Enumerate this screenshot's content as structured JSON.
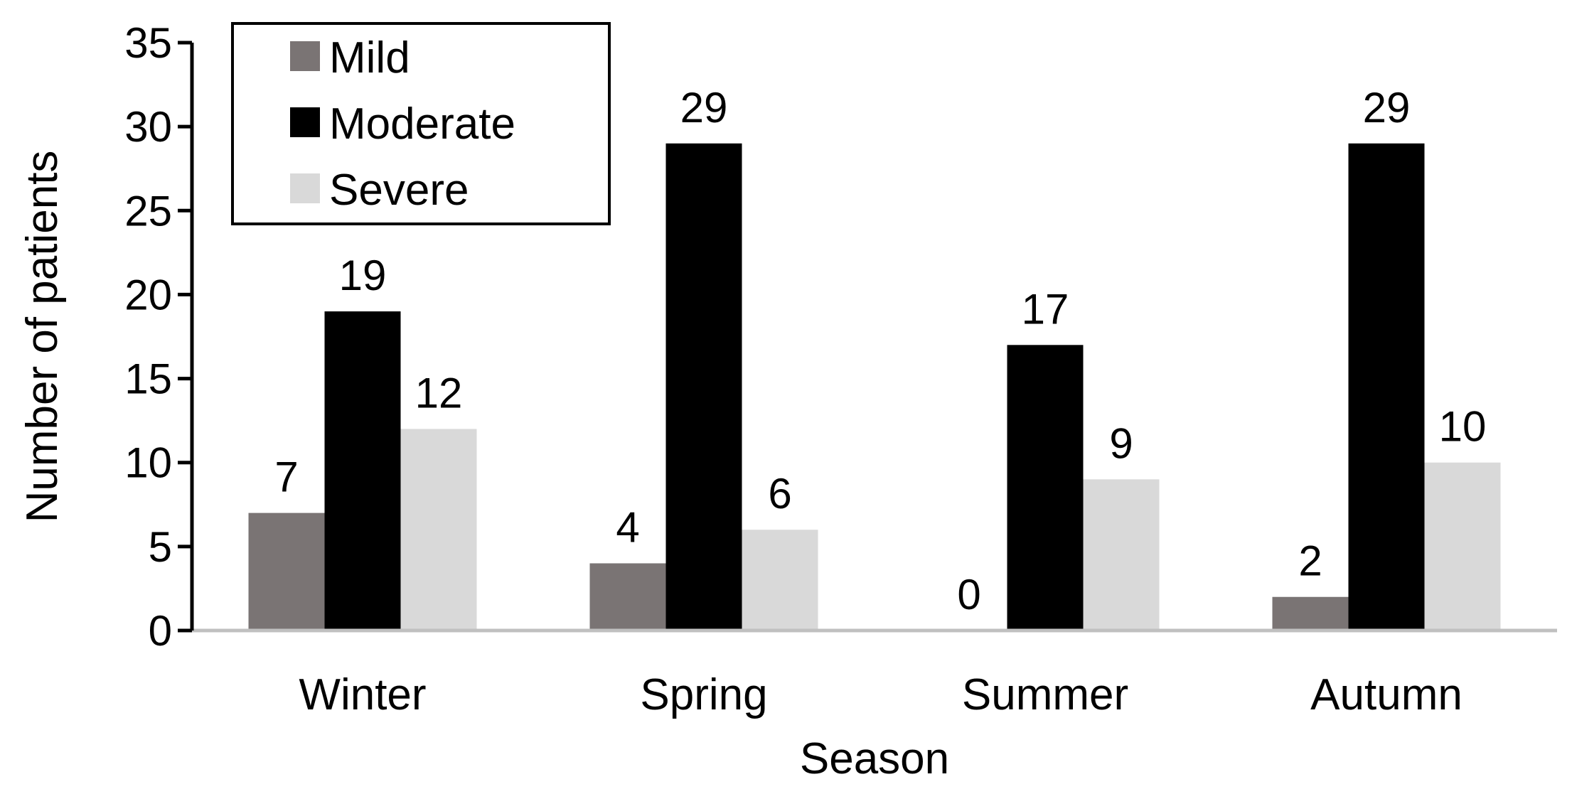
{
  "chart_data": {
    "type": "bar",
    "title": "",
    "xlabel": "Season",
    "ylabel": "Number of patients",
    "ylim": [
      0,
      35
    ],
    "yticks": [
      "0",
      "5",
      "10",
      "15",
      "20",
      "25",
      "30",
      "35"
    ],
    "categories": [
      "Winter",
      "Spring",
      "Summer",
      "Autumn"
    ],
    "series": [
      {
        "name": "Mild",
        "values": [
          7,
          4,
          0,
          2
        ],
        "color": "#7a7474"
      },
      {
        "name": "Moderate",
        "values": [
          19,
          29,
          17,
          29
        ],
        "color": "#000000"
      },
      {
        "name": "Severe",
        "values": [
          12,
          6,
          9,
          10
        ],
        "color": "#d9d9d9"
      }
    ],
    "grid": false,
    "legend_position": "top-left",
    "data_labels": true
  }
}
